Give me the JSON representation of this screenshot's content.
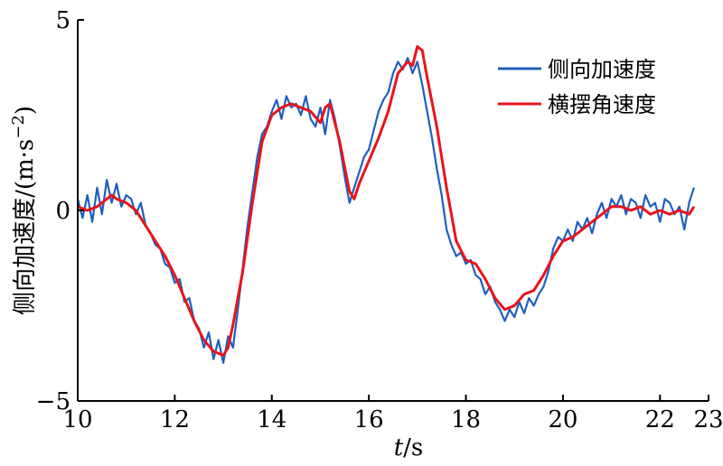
{
  "chart_data": {
    "type": "line",
    "title": "",
    "xlabel_italic": "t",
    "xlabel_rest": "/s",
    "ylabel_text": "侧向加速度/(m·s",
    "ylabel_sup": "−2",
    "ylabel_close": ")",
    "xlim": [
      10,
      23
    ],
    "ylim": [
      -5,
      5
    ],
    "xticks": [
      10,
      12,
      14,
      16,
      18,
      20,
      22,
      23
    ],
    "xtick_labels": [
      "10",
      "12",
      "14",
      "16",
      "18",
      "20",
      "22",
      "23"
    ],
    "yticks": [
      5,
      0,
      -5
    ],
    "ytick_labels": [
      "5",
      "0",
      "−5"
    ],
    "legend_position": "top-right",
    "series": [
      {
        "name": "侧向加速度",
        "color": "#1f5fbf",
        "x": [
          10.0,
          10.1,
          10.2,
          10.3,
          10.4,
          10.5,
          10.6,
          10.7,
          10.8,
          10.9,
          11.0,
          11.1,
          11.2,
          11.3,
          11.4,
          11.5,
          11.6,
          11.7,
          11.8,
          11.9,
          12.0,
          12.1,
          12.2,
          12.3,
          12.4,
          12.5,
          12.6,
          12.7,
          12.8,
          12.9,
          13.0,
          13.1,
          13.2,
          13.3,
          13.4,
          13.5,
          13.6,
          13.7,
          13.8,
          13.9,
          14.0,
          14.1,
          14.2,
          14.3,
          14.4,
          14.5,
          14.6,
          14.7,
          14.8,
          14.9,
          15.0,
          15.1,
          15.2,
          15.3,
          15.4,
          15.5,
          15.6,
          15.7,
          15.8,
          15.9,
          16.0,
          16.1,
          16.2,
          16.3,
          16.4,
          16.5,
          16.6,
          16.7,
          16.8,
          16.9,
          17.0,
          17.1,
          17.2,
          17.3,
          17.4,
          17.5,
          17.6,
          17.7,
          17.8,
          17.9,
          18.0,
          18.1,
          18.2,
          18.3,
          18.4,
          18.5,
          18.6,
          18.7,
          18.8,
          18.9,
          19.0,
          19.1,
          19.2,
          19.3,
          19.4,
          19.5,
          19.6,
          19.7,
          19.8,
          19.9,
          20.0,
          20.1,
          20.2,
          20.3,
          20.4,
          20.5,
          20.6,
          20.7,
          20.8,
          20.9,
          21.0,
          21.1,
          21.2,
          21.3,
          21.4,
          21.5,
          21.6,
          21.7,
          21.8,
          21.9,
          22.0,
          22.1,
          22.2,
          22.3,
          22.4,
          22.5,
          22.6,
          22.7
        ],
        "y": [
          0.3,
          -0.2,
          0.4,
          -0.3,
          0.6,
          -0.1,
          0.8,
          0.2,
          0.7,
          0.1,
          0.4,
          0.3,
          -0.1,
          0.2,
          -0.4,
          -0.6,
          -0.9,
          -1.0,
          -1.4,
          -1.5,
          -1.9,
          -1.8,
          -2.4,
          -2.3,
          -2.9,
          -3.1,
          -3.6,
          -3.2,
          -3.9,
          -3.4,
          -4.0,
          -3.3,
          -3.6,
          -2.6,
          -1.5,
          -0.4,
          0.5,
          1.4,
          2.0,
          2.2,
          2.6,
          2.9,
          2.4,
          3.0,
          2.7,
          2.8,
          2.5,
          3.0,
          2.4,
          2.2,
          2.7,
          2.0,
          2.9,
          2.4,
          1.7,
          0.9,
          0.2,
          0.6,
          1.0,
          1.4,
          1.6,
          2.1,
          2.6,
          2.9,
          3.1,
          3.6,
          3.9,
          3.7,
          4.0,
          3.6,
          3.9,
          3.3,
          2.6,
          1.9,
          1.1,
          0.4,
          -0.5,
          -0.9,
          -1.2,
          -1.1,
          -1.4,
          -1.3,
          -1.7,
          -1.8,
          -2.2,
          -2.0,
          -2.4,
          -2.6,
          -2.9,
          -2.6,
          -2.8,
          -2.4,
          -2.7,
          -2.3,
          -2.5,
          -2.2,
          -2.0,
          -1.6,
          -1.0,
          -0.7,
          -0.8,
          -0.5,
          -0.8,
          -0.3,
          -0.5,
          -0.2,
          -0.6,
          -0.1,
          0.2,
          -0.2,
          0.3,
          0.1,
          0.4,
          -0.1,
          0.3,
          0.2,
          -0.2,
          0.4,
          0.1,
          0.2,
          -0.3,
          0.3,
          0.2,
          -0.1,
          0.1,
          -0.5,
          0.2,
          0.6
        ]
      },
      {
        "name": "横摆角速度",
        "color": "#e8141c",
        "x": [
          10.0,
          10.2,
          10.4,
          10.6,
          10.7,
          10.8,
          11.0,
          11.2,
          11.4,
          11.6,
          11.8,
          12.0,
          12.2,
          12.4,
          12.6,
          12.8,
          13.0,
          13.1,
          13.2,
          13.4,
          13.6,
          13.8,
          14.0,
          14.2,
          14.4,
          14.6,
          14.8,
          15.0,
          15.1,
          15.2,
          15.4,
          15.6,
          15.7,
          15.8,
          16.0,
          16.2,
          16.4,
          16.6,
          16.8,
          16.9,
          17.0,
          17.1,
          17.2,
          17.4,
          17.6,
          17.8,
          18.0,
          18.2,
          18.4,
          18.6,
          18.8,
          19.0,
          19.2,
          19.4,
          19.6,
          19.8,
          20.0,
          20.2,
          20.4,
          20.6,
          20.8,
          21.0,
          21.2,
          21.4,
          21.6,
          21.8,
          22.0,
          22.2,
          22.4,
          22.6,
          22.7
        ],
        "y": [
          0.1,
          0.0,
          0.1,
          0.3,
          0.4,
          0.3,
          0.2,
          0.0,
          -0.4,
          -0.8,
          -1.2,
          -1.7,
          -2.3,
          -2.9,
          -3.4,
          -3.7,
          -3.8,
          -3.6,
          -3.0,
          -1.6,
          0.2,
          1.8,
          2.5,
          2.7,
          2.8,
          2.7,
          2.6,
          2.3,
          2.7,
          2.8,
          1.8,
          0.5,
          0.3,
          0.7,
          1.3,
          1.9,
          2.6,
          3.6,
          3.9,
          3.8,
          4.3,
          4.2,
          3.5,
          2.2,
          0.6,
          -0.8,
          -1.3,
          -1.4,
          -1.8,
          -2.3,
          -2.6,
          -2.5,
          -2.2,
          -2.1,
          -1.7,
          -1.2,
          -0.8,
          -0.7,
          -0.5,
          -0.3,
          -0.1,
          0.1,
          0.1,
          0.0,
          0.1,
          -0.1,
          0.0,
          -0.1,
          0.0,
          -0.1,
          0.1
        ]
      }
    ]
  }
}
